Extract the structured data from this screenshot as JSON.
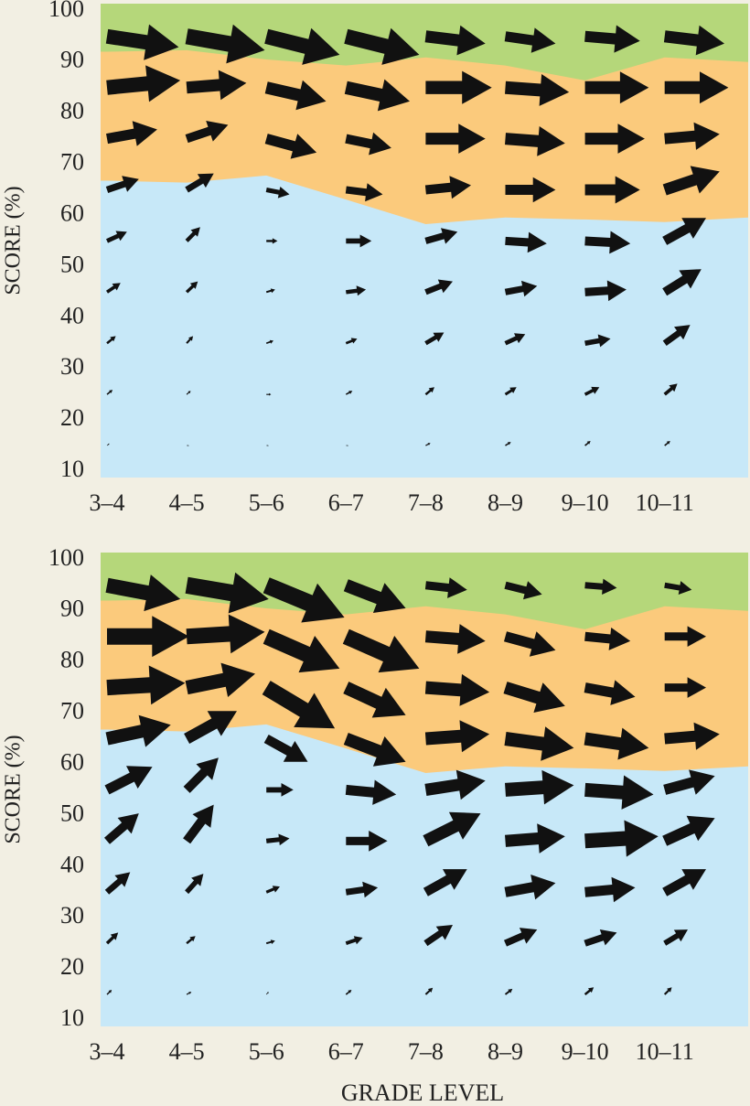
{
  "chart_data": [
    {
      "type": "quiver",
      "ylabel": "SCORE (%)",
      "categories": [
        "3–4",
        "4–5",
        "5–6",
        "6–7",
        "7–8",
        "8–9",
        "9–10",
        "10–11",
        null
      ],
      "ylim": [
        8.75,
        101.4
      ],
      "yticks": [
        10,
        20,
        30,
        40,
        50,
        60,
        70,
        80,
        90,
        100
      ],
      "background_color": "#b5d77a",
      "arrow_color": "#111111",
      "series": [
        {
          "color": "#c7e8f8",
          "values": [
            66.8,
            66.4,
            67.8,
            63.1,
            58.3,
            59.6,
            59.2,
            58.7,
            59.6
          ]
        },
        {
          "color": "#fbca7c",
          "values": [
            92,
            92.3,
            90.5,
            89.3,
            90.9,
            89.3,
            86.4,
            90.9,
            90
          ]
        }
      ],
      "levels": [
        95,
        85,
        75,
        65,
        55,
        45,
        35,
        25,
        15
      ],
      "u": [
        [
          0.9,
          0.98,
          0.92,
          0.92,
          0.75,
          0.63,
          0.69,
          0.75
        ],
        [
          0.92,
          0.75,
          0.75,
          0.8,
          0.83,
          0.8,
          0.8,
          0.8
        ],
        [
          0.63,
          0.52,
          0.63,
          0.57,
          0.75,
          0.75,
          0.75,
          0.69
        ],
        [
          0.4,
          0.34,
          0.29,
          0.46,
          0.57,
          0.63,
          0.69,
          0.69
        ],
        [
          0.25,
          0.17,
          0.14,
          0.32,
          0.4,
          0.52,
          0.57,
          0.52
        ],
        [
          0.17,
          0.14,
          0.11,
          0.25,
          0.34,
          0.4,
          0.52,
          0.46
        ],
        [
          0.11,
          0.08,
          0.09,
          0.14,
          0.23,
          0.25,
          0.32,
          0.32
        ],
        [
          0.07,
          0.05,
          0.06,
          0.08,
          0.11,
          0.14,
          0.18,
          0.16
        ],
        [
          0.03,
          0.03,
          0.03,
          0.03,
          0.06,
          0.07,
          0.07,
          0.07
        ]
      ],
      "v": [
        [
          -2.1,
          -2.7,
          -3.6,
          -3.6,
          -1.4,
          -1.4,
          -0.9,
          -1.4
        ],
        [
          1.4,
          0.9,
          -2.7,
          -2.7,
          0,
          -0.9,
          0,
          0
        ],
        [
          1.8,
          2.7,
          -2.7,
          -1.8,
          0,
          -0.9,
          0,
          0.9
        ],
        [
          2.1,
          3.2,
          -0.9,
          -0.9,
          0.9,
          0,
          0,
          3.6
        ],
        [
          1.8,
          2.7,
          0,
          0,
          1.8,
          -0.5,
          -0.5,
          4.5
        ],
        [
          1.8,
          2.1,
          0.5,
          0.5,
          2.1,
          1.2,
          0.5,
          4.5
        ],
        [
          1.4,
          1.4,
          0.5,
          0.9,
          2.1,
          1.8,
          0.9,
          3.6
        ],
        [
          0.9,
          0.7,
          0,
          0.7,
          1.4,
          1.4,
          1.4,
          2.1
        ],
        [
          0.4,
          0,
          0,
          0,
          0.5,
          0.7,
          0.9,
          0.9
        ]
      ]
    },
    {
      "type": "quiver",
      "ylabel": "SCORE (%)",
      "xlabel": "GRADE LEVEL",
      "categories": [
        "3–4",
        "4–5",
        "5–6",
        "6–7",
        "7–8",
        "8–9",
        "9–10",
        "10–11",
        null
      ],
      "ylim": [
        8.75,
        101.4
      ],
      "yticks": [
        10,
        20,
        30,
        40,
        50,
        60,
        70,
        80,
        90,
        100
      ],
      "background_color": "#b5d77a",
      "arrow_color": "#111111",
      "series": [
        {
          "color": "#c7e8f8",
          "values": [
            66.8,
            66.4,
            67.8,
            63.1,
            58.3,
            59.6,
            59.2,
            58.7,
            59.6
          ]
        },
        {
          "color": "#fbca7c",
          "values": [
            92,
            92.3,
            90.5,
            89.3,
            90.9,
            89.3,
            86.4,
            90.9,
            90
          ]
        }
      ],
      "levels": [
        95,
        85,
        75,
        65,
        55,
        45,
        35,
        25,
        15
      ],
      "u": [
        [
          0.92,
          1.03,
          0.98,
          0.75,
          0.52,
          0.46,
          0.4,
          0.34
        ],
        [
          1.03,
          0.98,
          0.92,
          0.92,
          0.75,
          0.63,
          0.57,
          0.52
        ],
        [
          0.98,
          0.86,
          0.86,
          0.75,
          0.8,
          0.75,
          0.63,
          0.52
        ],
        [
          0.8,
          0.63,
          0.52,
          0.75,
          0.8,
          0.86,
          0.8,
          0.69
        ],
        [
          0.57,
          0.4,
          0.34,
          0.63,
          0.75,
          0.86,
          0.86,
          0.63
        ],
        [
          0.4,
          0.34,
          0.29,
          0.52,
          0.69,
          0.75,
          0.92,
          0.63
        ],
        [
          0.29,
          0.21,
          0.17,
          0.4,
          0.52,
          0.63,
          0.63,
          0.52
        ],
        [
          0.14,
          0.11,
          0.11,
          0.21,
          0.34,
          0.4,
          0.4,
          0.29
        ],
        [
          0.06,
          0.06,
          0.03,
          0.07,
          0.09,
          0.09,
          0.11,
          0.09
        ]
      ],
      "v": [
        [
          -2.7,
          -2.7,
          -6.3,
          -4.5,
          -0.9,
          -1.8,
          -0.5,
          -0.9
        ],
        [
          0,
          0.9,
          -6.3,
          -6.3,
          -0.9,
          -2.7,
          -0.9,
          0
        ],
        [
          0.9,
          2.7,
          -8,
          -5.4,
          -0.9,
          -3.6,
          -1.8,
          0
        ],
        [
          2.7,
          5.4,
          -4.5,
          -4.5,
          0.9,
          -1.8,
          -1.8,
          0.9
        ],
        [
          4.5,
          6.3,
          0,
          -0.9,
          1.8,
          0.9,
          -0.9,
          2.7
        ],
        [
          5.4,
          7.1,
          0.5,
          0,
          5.4,
          0.9,
          0.9,
          4.5
        ],
        [
          3.9,
          3.6,
          1.1,
          0.9,
          4.5,
          1.8,
          0.9,
          4.5
        ],
        [
          2.1,
          1.4,
          0.5,
          1.1,
          3.6,
          2.7,
          2.1,
          2.7
        ],
        [
          0.9,
          0.5,
          0.5,
          0.9,
          1.3,
          1.1,
          1.4,
          1.4
        ]
      ]
    }
  ]
}
